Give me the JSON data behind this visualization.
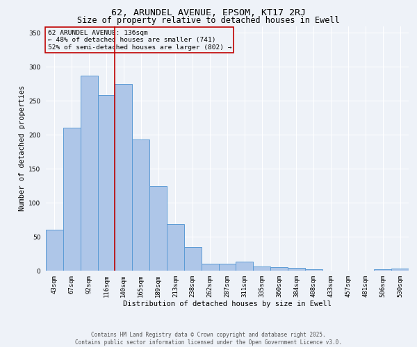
{
  "title1": "62, ARUNDEL AVENUE, EPSOM, KT17 2RJ",
  "title2": "Size of property relative to detached houses in Ewell",
  "xlabel": "Distribution of detached houses by size in Ewell",
  "ylabel": "Number of detached properties",
  "categories": [
    "43sqm",
    "67sqm",
    "92sqm",
    "116sqm",
    "140sqm",
    "165sqm",
    "189sqm",
    "213sqm",
    "238sqm",
    "262sqm",
    "287sqm",
    "311sqm",
    "335sqm",
    "360sqm",
    "384sqm",
    "408sqm",
    "433sqm",
    "457sqm",
    "481sqm",
    "506sqm",
    "530sqm"
  ],
  "values": [
    60,
    210,
    287,
    258,
    275,
    193,
    125,
    68,
    35,
    10,
    10,
    13,
    6,
    5,
    4,
    2,
    0,
    0,
    0,
    2,
    3
  ],
  "bar_color": "#aec6e8",
  "bar_edge_color": "#5b9bd5",
  "ylim": [
    0,
    360
  ],
  "yticks": [
    0,
    50,
    100,
    150,
    200,
    250,
    300,
    350
  ],
  "vline_color": "#c00000",
  "annotation_text": "62 ARUNDEL AVENUE: 136sqm\n← 48% of detached houses are smaller (741)\n52% of semi-detached houses are larger (802) →",
  "annotation_box_color": "#c00000",
  "footer_text": "Contains HM Land Registry data © Crown copyright and database right 2025.\nContains public sector information licensed under the Open Government Licence v3.0.",
  "background_color": "#eef2f8",
  "grid_color": "#ffffff",
  "title1_fontsize": 9.5,
  "title2_fontsize": 8.5,
  "xlabel_fontsize": 7.5,
  "ylabel_fontsize": 7.5,
  "tick_fontsize": 6.5,
  "ann_fontsize": 6.8,
  "footer_fontsize": 5.5
}
